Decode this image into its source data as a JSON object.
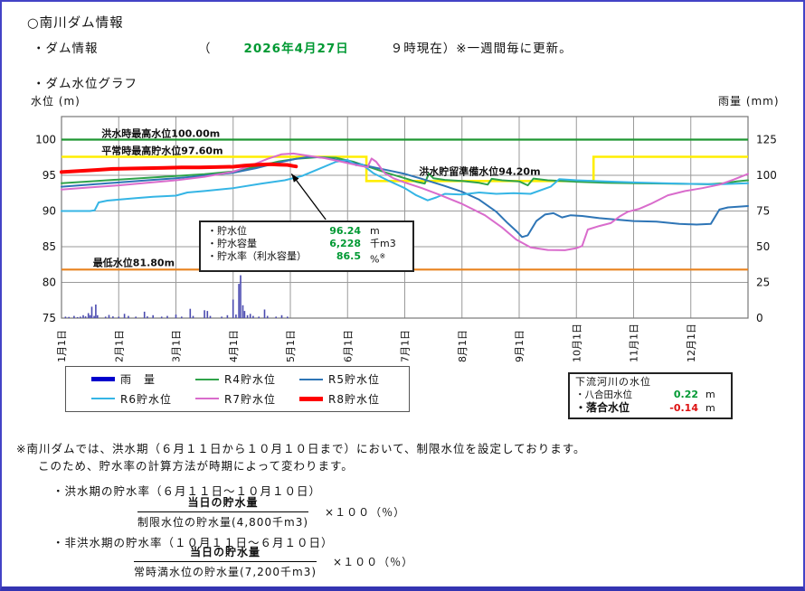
{
  "page": {
    "title": "○南川ダム情報",
    "info_label": "・ダム情報",
    "paren_open": "（",
    "info_date": "2026年4月27日",
    "info_suffix": "９時現在）※一週間毎に更新。",
    "graph_label": "・ダム水位グラフ"
  },
  "colors": {
    "page_border": "#4343c6",
    "date_green": "#009933",
    "value_green": "#009933",
    "value_red": "#dd1111"
  },
  "chart_data": {
    "type": "line+bar",
    "title": "ダム水位グラフ",
    "left_axis": {
      "label": "水位 (m)",
      "ticks": [
        100,
        95,
        90,
        85,
        80,
        75
      ],
      "gridlines": [
        100,
        95,
        90,
        85,
        80
      ],
      "range": [
        75,
        103.2
      ]
    },
    "right_axis": {
      "label": "雨量 (mm)",
      "ticks": [
        125,
        100,
        75,
        50,
        25,
        0
      ],
      "range": [
        0,
        141
      ]
    },
    "x_labels": [
      "1月1日",
      "2月1日",
      "3月1日",
      "4月1日",
      "5月1日",
      "6月1日",
      "7月1日",
      "8月1日",
      "9月1日",
      "10月1日",
      "11月1日",
      "12月1日"
    ],
    "style": {
      "grid_color": "#9a9a9a",
      "border_color": "#777777",
      "rain_color": "#4a4ab0"
    },
    "reference_lines": [
      {
        "name": "洪水時最高水位",
        "value": 100.0,
        "color": "#1e9632",
        "width": 2.2,
        "points": [
          [
            0,
            100
          ],
          [
            12,
            100
          ]
        ]
      },
      {
        "name": "平常時最高貯水位/洪水貯留準備水位",
        "value": "97.60→94.20→97.60",
        "color": "#ffee00",
        "width": 2.6,
        "points": [
          [
            0,
            97.6
          ],
          [
            5.33,
            97.6
          ],
          [
            5.33,
            94.2
          ],
          [
            9.3,
            94.2
          ],
          [
            9.3,
            97.6
          ],
          [
            12,
            97.6
          ]
        ]
      },
      {
        "name": "最低水位",
        "value": 81.8,
        "color": "#e8821e",
        "width": 2.2,
        "points": [
          [
            0,
            81.8
          ],
          [
            12,
            81.8
          ]
        ]
      }
    ],
    "annotations": [
      {
        "text": "洪水時最高水位100.00m",
        "month": 0.7,
        "level": 100.4
      },
      {
        "text": "平常時最高貯水位97.60m",
        "month": 0.7,
        "level": 98.0
      },
      {
        "text": "洪水貯留準備水位94.20m",
        "month": 6.25,
        "level": 95.05
      },
      {
        "text": "最低水位81.80m",
        "month": 0.55,
        "level": 82.3
      }
    ],
    "arrow": {
      "from": [
        4.62,
        88.8
      ],
      "to": [
        4.02,
        95.2
      ]
    },
    "series": [
      {
        "name": "R4貯水位",
        "color": "#2fa34a",
        "width": 2,
        "points": [
          [
            0,
            93.9
          ],
          [
            0.5,
            94.15
          ],
          [
            1,
            94.4
          ],
          [
            1.5,
            94.65
          ],
          [
            2,
            94.9
          ],
          [
            2.5,
            95.15
          ],
          [
            3,
            95.55
          ],
          [
            3.4,
            96.2
          ],
          [
            3.8,
            96.95
          ],
          [
            4.1,
            97.3
          ],
          [
            4.5,
            97.55
          ],
          [
            4.8,
            97.45
          ],
          [
            5.1,
            96.9
          ],
          [
            5.4,
            96.1
          ],
          [
            5.7,
            95.3
          ],
          [
            6,
            94.6
          ],
          [
            6.2,
            94.1
          ],
          [
            6.35,
            93.85
          ],
          [
            6.42,
            95.25
          ],
          [
            6.5,
            94.6
          ],
          [
            6.7,
            94.35
          ],
          [
            7,
            94.2
          ],
          [
            7.3,
            93.95
          ],
          [
            7.45,
            93.7
          ],
          [
            7.52,
            94.5
          ],
          [
            7.7,
            94.3
          ],
          [
            8,
            94.15
          ],
          [
            8.15,
            93.6
          ],
          [
            8.25,
            94.55
          ],
          [
            8.5,
            94.3
          ],
          [
            9,
            94.1
          ],
          [
            9.5,
            93.95
          ],
          [
            10,
            93.9
          ],
          [
            10.5,
            93.85
          ],
          [
            11,
            93.8
          ],
          [
            11.3,
            93.75
          ],
          [
            11.6,
            93.9
          ],
          [
            11.8,
            94.15
          ],
          [
            12,
            94.3
          ]
        ]
      },
      {
        "name": "R5貯水位",
        "color": "#2e75b6",
        "width": 2,
        "points": [
          [
            0,
            93.4
          ],
          [
            0.5,
            93.7
          ],
          [
            1,
            94.0
          ],
          [
            1.5,
            94.3
          ],
          [
            2,
            94.6
          ],
          [
            2.5,
            94.95
          ],
          [
            3,
            95.35
          ],
          [
            3.4,
            96.0
          ],
          [
            3.8,
            96.8
          ],
          [
            4.1,
            97.3
          ],
          [
            4.35,
            97.6
          ],
          [
            4.6,
            97.45
          ],
          [
            5,
            96.9
          ],
          [
            5.5,
            96.05
          ],
          [
            6,
            95.2
          ],
          [
            6.3,
            94.5
          ],
          [
            6.7,
            93.5
          ],
          [
            7,
            92.7
          ],
          [
            7.3,
            91.6
          ],
          [
            7.6,
            89.9
          ],
          [
            7.8,
            88.3
          ],
          [
            7.95,
            87.2
          ],
          [
            8.05,
            86.35
          ],
          [
            8.15,
            86.6
          ],
          [
            8.3,
            88.6
          ],
          [
            8.45,
            89.5
          ],
          [
            8.6,
            89.7
          ],
          [
            8.75,
            89.1
          ],
          [
            8.9,
            89.4
          ],
          [
            9.1,
            89.3
          ],
          [
            9.4,
            89.0
          ],
          [
            9.7,
            88.8
          ],
          [
            10,
            88.6
          ],
          [
            10.4,
            88.5
          ],
          [
            10.8,
            88.2
          ],
          [
            11.1,
            88.1
          ],
          [
            11.35,
            88.2
          ],
          [
            11.5,
            90.2
          ],
          [
            11.65,
            90.5
          ],
          [
            12,
            90.7
          ]
        ]
      },
      {
        "name": "R6貯水位",
        "color": "#35b5e5",
        "width": 2,
        "points": [
          [
            0,
            90.0
          ],
          [
            0.5,
            90.0
          ],
          [
            0.58,
            90.1
          ],
          [
            0.65,
            91.2
          ],
          [
            0.8,
            91.45
          ],
          [
            1,
            91.6
          ],
          [
            1.3,
            91.8
          ],
          [
            1.6,
            92.0
          ],
          [
            2,
            92.15
          ],
          [
            2.2,
            92.6
          ],
          [
            2.5,
            92.8
          ],
          [
            3,
            93.2
          ],
          [
            3.5,
            93.85
          ],
          [
            3.9,
            94.3
          ],
          [
            4.2,
            94.9
          ],
          [
            4.5,
            95.9
          ],
          [
            4.8,
            96.9
          ],
          [
            5,
            97.15
          ],
          [
            5.15,
            96.4
          ],
          [
            5.25,
            96.55
          ],
          [
            5.45,
            95.3
          ],
          [
            5.7,
            94.3
          ],
          [
            6,
            93.2
          ],
          [
            6.2,
            92.2
          ],
          [
            6.4,
            91.5
          ],
          [
            6.55,
            91.9
          ],
          [
            6.7,
            92.4
          ],
          [
            7,
            92.3
          ],
          [
            7.3,
            92.6
          ],
          [
            7.6,
            92.4
          ],
          [
            7.9,
            92.5
          ],
          [
            8.2,
            92.4
          ],
          [
            8.55,
            93.4
          ],
          [
            8.7,
            94.45
          ],
          [
            9,
            94.3
          ],
          [
            9.5,
            94.15
          ],
          [
            10,
            94.0
          ],
          [
            10.5,
            93.9
          ],
          [
            11,
            93.8
          ],
          [
            11.5,
            93.75
          ],
          [
            12,
            93.9
          ]
        ]
      },
      {
        "name": "R7貯水位",
        "color": "#d96ccc",
        "width": 2,
        "points": [
          [
            0,
            93.0
          ],
          [
            0.5,
            93.3
          ],
          [
            1,
            93.6
          ],
          [
            1.5,
            93.95
          ],
          [
            2,
            94.3
          ],
          [
            2.5,
            94.8
          ],
          [
            3,
            95.5
          ],
          [
            3.3,
            96.3
          ],
          [
            3.6,
            97.3
          ],
          [
            3.85,
            97.95
          ],
          [
            4.05,
            98.05
          ],
          [
            4.3,
            97.75
          ],
          [
            4.6,
            97.4
          ],
          [
            4.9,
            96.9
          ],
          [
            5.2,
            96.35
          ],
          [
            5.35,
            96.15
          ],
          [
            5.42,
            97.35
          ],
          [
            5.5,
            96.9
          ],
          [
            5.65,
            95.3
          ],
          [
            5.8,
            94.6
          ],
          [
            6,
            94.0
          ],
          [
            6.3,
            93.2
          ],
          [
            6.6,
            92.3
          ],
          [
            7,
            91.0
          ],
          [
            7.4,
            89.4
          ],
          [
            7.7,
            87.7
          ],
          [
            7.95,
            86.0
          ],
          [
            8.2,
            84.9
          ],
          [
            8.5,
            84.55
          ],
          [
            8.8,
            84.5
          ],
          [
            9,
            84.8
          ],
          [
            9.1,
            85.1
          ],
          [
            9.2,
            87.4
          ],
          [
            9.4,
            87.9
          ],
          [
            9.6,
            88.3
          ],
          [
            9.75,
            89.2
          ],
          [
            9.9,
            89.9
          ],
          [
            10.1,
            90.3
          ],
          [
            10.3,
            91.0
          ],
          [
            10.6,
            92.2
          ],
          [
            10.9,
            92.8
          ],
          [
            11.2,
            93.2
          ],
          [
            11.5,
            93.7
          ],
          [
            11.75,
            94.4
          ],
          [
            12,
            95.2
          ]
        ]
      },
      {
        "name": "R8貯水位",
        "color": "#ff0000",
        "width": 4,
        "points": [
          [
            0,
            95.45
          ],
          [
            0.3,
            95.6
          ],
          [
            0.6,
            95.75
          ],
          [
            0.9,
            95.9
          ],
          [
            1.2,
            95.95
          ],
          [
            1.5,
            96.0
          ],
          [
            1.8,
            96.05
          ],
          [
            2.1,
            96.1
          ],
          [
            2.4,
            96.1
          ],
          [
            2.7,
            96.15
          ],
          [
            3,
            96.2
          ],
          [
            3.2,
            96.35
          ],
          [
            3.45,
            96.5
          ],
          [
            3.65,
            96.55
          ],
          [
            3.8,
            96.5
          ],
          [
            3.95,
            96.45
          ],
          [
            4.05,
            96.3
          ],
          [
            4.1,
            96.24
          ]
        ]
      }
    ],
    "rain_bars": [
      [
        0.07,
        1
      ],
      [
        0.13,
        0.8
      ],
      [
        0.22,
        1.5
      ],
      [
        0.28,
        0.7
      ],
      [
        0.33,
        1
      ],
      [
        0.38,
        2
      ],
      [
        0.42,
        1.2
      ],
      [
        0.47,
        3.5
      ],
      [
        0.5,
        2
      ],
      [
        0.53,
        8
      ],
      [
        0.57,
        1.5
      ],
      [
        0.6,
        9.5
      ],
      [
        0.63,
        2
      ],
      [
        0.77,
        1
      ],
      [
        0.83,
        2.2
      ],
      [
        0.9,
        1.2
      ],
      [
        1.0,
        1
      ],
      [
        1.1,
        3
      ],
      [
        1.17,
        1.5
      ],
      [
        1.3,
        1
      ],
      [
        1.45,
        4.5
      ],
      [
        1.5,
        1.2
      ],
      [
        1.6,
        2
      ],
      [
        1.75,
        1
      ],
      [
        1.85,
        1.5
      ],
      [
        2.0,
        2.5
      ],
      [
        2.1,
        1
      ],
      [
        2.25,
        6.5
      ],
      [
        2.3,
        1.5
      ],
      [
        2.5,
        5.5
      ],
      [
        2.55,
        5
      ],
      [
        2.6,
        1.5
      ],
      [
        2.8,
        1
      ],
      [
        2.9,
        2
      ],
      [
        3.0,
        13
      ],
      [
        3.05,
        2.5
      ],
      [
        3.1,
        24
      ],
      [
        3.13,
        30
      ],
      [
        3.17,
        9
      ],
      [
        3.2,
        5
      ],
      [
        3.25,
        2
      ],
      [
        3.3,
        3
      ],
      [
        3.35,
        1.5
      ],
      [
        3.45,
        1
      ],
      [
        3.55,
        6
      ],
      [
        3.6,
        1.5
      ],
      [
        3.75,
        1
      ],
      [
        3.85,
        2
      ],
      [
        3.95,
        1
      ]
    ]
  },
  "callout": {
    "rows": [
      {
        "label": "・貯水位",
        "value": "96.24",
        "unit": "m"
      },
      {
        "label": "・貯水容量",
        "value": "6,228",
        "unit": "千m3"
      },
      {
        "label": "・貯水率（利水容量）",
        "value": "86.5",
        "unit": "%",
        "unit_note": "※"
      }
    ]
  },
  "legend": {
    "items": [
      {
        "label": "雨　量",
        "color": "#0000cc",
        "thick": true
      },
      {
        "label": "R4貯水位",
        "color": "#2fa34a",
        "thick": false
      },
      {
        "label": "R5貯水位",
        "color": "#2e75b6",
        "thick": false
      },
      {
        "label": "R6貯水位",
        "color": "#35b5e5",
        "thick": false
      },
      {
        "label": "R7貯水位",
        "color": "#d96ccc",
        "thick": false
      },
      {
        "label": "R8貯水位",
        "color": "#ff0000",
        "thick": true
      }
    ]
  },
  "downstream": {
    "title": "下流河川の水位",
    "rows": [
      {
        "label": "・八合田水位",
        "value": "0.22",
        "unit": "m"
      },
      {
        "label": "・落合水位",
        "value": "-0.14",
        "unit": "m"
      }
    ]
  },
  "notes": {
    "line1": "※南川ダムでは、洪水期（６月１１日から１０月１０日まで）において、制限水位を設定しております。",
    "line2": "このため、貯水率の計算方法が時期によって変わります。",
    "flood": {
      "title": "・洪水期の貯水率（６月１１日～１０月１０日）",
      "numerator": "当日の貯水量",
      "denominator": "制限水位の貯水量(4,800千m3)",
      "multiplier": "×１００（％）"
    },
    "nonflood": {
      "title": "・非洪水期の貯水率（１０月１１日～６月１０日）",
      "numerator": "当日の貯水量",
      "denominator": "常時満水位の貯水量(7,200千m3)",
      "multiplier": "×１００（％）"
    }
  }
}
